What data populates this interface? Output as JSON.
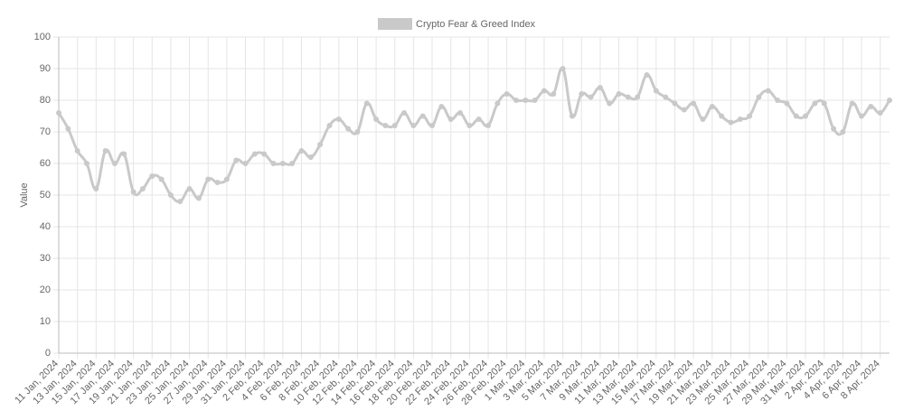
{
  "chart_data": {
    "type": "line",
    "legend": "top",
    "y_label": "Value",
    "categories": [
      "11 Jan, 2024",
      null,
      "13 Jan, 2024",
      null,
      "15 Jan, 2024",
      null,
      "17 Jan, 2024",
      null,
      "19 Jan, 2024",
      null,
      "21 Jan, 2024",
      null,
      "23 Jan, 2024",
      null,
      "25 Jan, 2024",
      null,
      "27 Jan, 2024",
      null,
      "29 Jan, 2024",
      null,
      "31 Jan, 2024",
      null,
      "2 Feb, 2024",
      null,
      "4 Feb, 2024",
      null,
      "6 Feb, 2024",
      null,
      "8 Feb, 2024",
      null,
      "10 Feb, 2024",
      null,
      "12 Feb, 2024",
      null,
      "14 Feb, 2024",
      null,
      "16 Feb, 2024",
      null,
      "18 Feb, 2024",
      null,
      "20 Feb, 2024",
      null,
      "22 Feb, 2024",
      null,
      "24 Feb, 2024",
      null,
      "26 Feb, 2024",
      null,
      "28 Feb, 2024",
      null,
      "1 Mar, 2024",
      null,
      "3 Mar, 2024",
      null,
      "5 Mar, 2024",
      null,
      "7 Mar, 2024",
      null,
      "9 Mar, 2024",
      null,
      "11 Mar, 2024",
      null,
      "13 Mar, 2024",
      null,
      "15 Mar, 2024",
      null,
      "17 Mar, 2024",
      null,
      "19 Mar, 2024",
      null,
      "21 Mar, 2024",
      null,
      "23 Mar, 2024",
      null,
      "25 Mar, 2024",
      null,
      "27 Mar, 2024",
      null,
      "29 Mar, 2024",
      null,
      "31 Mar, 2024",
      null,
      "2 Apr, 2024",
      null,
      "4 Apr, 2024",
      null,
      "6 Apr, 2024",
      null,
      "8 Apr, 2024",
      null
    ],
    "series": [
      {
        "name": "Crypto Fear & Greed Index",
        "color": "#c9c9c9",
        "values": [
          76,
          71,
          64,
          60,
          52,
          64,
          60,
          63,
          51,
          52,
          56,
          55,
          50,
          48,
          52,
          49,
          55,
          54,
          55,
          61,
          60,
          63,
          63,
          60,
          60,
          60,
          64,
          62,
          66,
          72,
          74,
          71,
          70,
          79,
          74,
          72,
          72,
          76,
          72,
          75,
          72,
          78,
          74,
          76,
          72,
          74,
          72,
          79,
          82,
          80,
          80,
          80,
          83,
          82,
          90,
          75,
          82,
          81,
          84,
          79,
          82,
          81,
          81,
          88,
          83,
          81,
          79,
          77,
          79,
          74,
          78,
          75,
          73,
          74,
          75,
          81,
          83,
          80,
          79,
          75,
          75,
          79,
          79,
          71,
          70,
          79,
          75,
          78,
          76,
          80
        ]
      }
    ],
    "ylim": [
      0,
      100
    ],
    "yticks": [
      0,
      10,
      20,
      30,
      40,
      50,
      60,
      70,
      80,
      90,
      100
    ],
    "grid": true
  }
}
